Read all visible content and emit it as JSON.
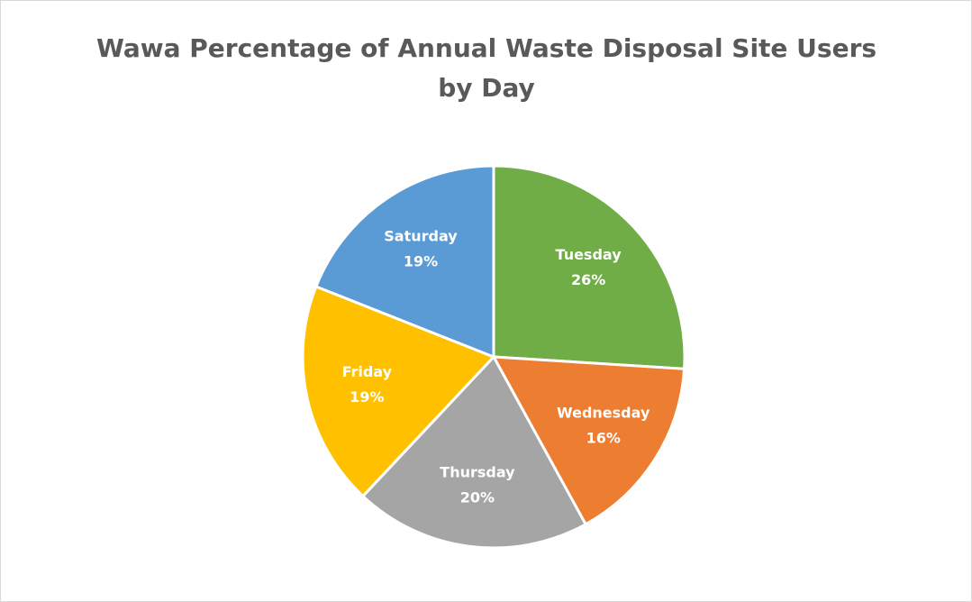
{
  "chart_data": {
    "type": "pie",
    "title": "Wawa Percentage of Annual Waste Disposal Site Users by Day",
    "categories": [
      "Tuesday",
      "Wednesday",
      "Thursday",
      "Friday",
      "Saturday"
    ],
    "values": [
      26,
      16,
      20,
      19,
      19
    ],
    "value_labels": [
      "26%",
      "16%",
      "20%",
      "19%",
      "19%"
    ],
    "colors": [
      "#70ad47",
      "#ed7d31",
      "#a5a5a5",
      "#ffc000",
      "#5b9bd5"
    ]
  }
}
